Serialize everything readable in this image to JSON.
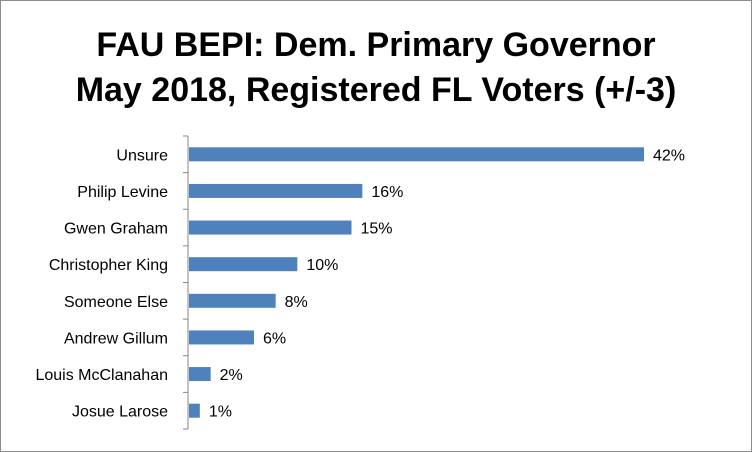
{
  "chart_data": {
    "type": "bar",
    "orientation": "horizontal",
    "title_lines": [
      "FAU BEPI: Dem. Primary Governor",
      "May 2018, Registered FL Voters (+/-3)"
    ],
    "categories": [
      "Unsure",
      "Philip Levine",
      "Gwen Graham",
      "Christopher King",
      "Someone Else",
      "Andrew Gillum",
      "Louis McClanahan",
      "Josue Larose"
    ],
    "values": [
      42,
      16,
      15,
      10,
      8,
      6,
      2,
      1
    ],
    "value_labels": [
      "42%",
      "16%",
      "15%",
      "10%",
      "8%",
      "6%",
      "2%",
      "1%"
    ],
    "xlim": [
      0,
      42
    ],
    "bar_color": "#4f81bd",
    "grid": false,
    "legend": "none"
  }
}
